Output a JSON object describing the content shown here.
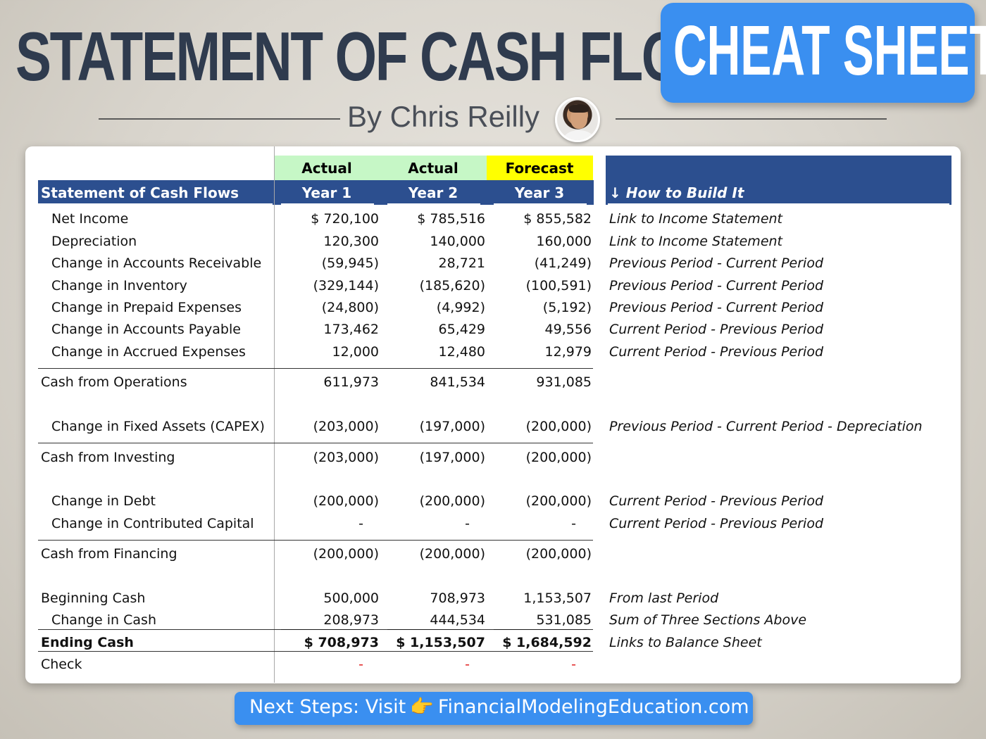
{
  "header": {
    "title": "STATEMENT OF CASH FLOWS",
    "badge": "CHEAT SHEET",
    "byline": "By Chris Reilly"
  },
  "colors": {
    "navy": "#2c4f8f",
    "accent_blue": "#3a8ff0",
    "actual_fill": "#c6f7c6",
    "forecast_fill": "#ffff00",
    "negative_check": "#e02020"
  },
  "table": {
    "top_headers": [
      "Actual",
      "Actual",
      "Forecast"
    ],
    "title": "Statement of Cash Flows",
    "years": [
      "Year 1",
      "Year 2",
      "Year 3"
    ],
    "how_header": "↓ How to Build It",
    "rows": [
      {
        "label": "Net Income",
        "values": [
          "$ 720,100",
          "$ 785,516",
          "$ 855,582"
        ],
        "note": "Link to Income Statement"
      },
      {
        "label": "Depreciation",
        "values": [
          "120,300",
          "140,000",
          "160,000"
        ],
        "note": "Link to Income Statement"
      },
      {
        "label": "Change in Accounts Receivable",
        "values": [
          "(59,945)",
          "28,721",
          "(41,249)"
        ],
        "note": "Previous Period - Current Period"
      },
      {
        "label": "Change in Inventory",
        "values": [
          "(329,144)",
          "(185,620)",
          "(100,591)"
        ],
        "note": "Previous Period - Current Period"
      },
      {
        "label": "Change in Prepaid Expenses",
        "values": [
          "(24,800)",
          "(4,992)",
          "(5,192)"
        ],
        "note": "Previous Period - Current Period"
      },
      {
        "label": "Change in Accounts Payable",
        "values": [
          "173,462",
          "65,429",
          "49,556"
        ],
        "note": "Current Period - Previous Period"
      },
      {
        "label": "Change in Accrued Expenses",
        "values": [
          "12,000",
          "12,480",
          "12,979"
        ],
        "note": "Current Period - Previous Period"
      },
      {
        "label": "Cash from Operations",
        "values": [
          "611,973",
          "841,534",
          "931,085"
        ],
        "note": ""
      },
      {
        "label": "Change in Fixed Assets (CAPEX)",
        "values": [
          "(203,000)",
          "(197,000)",
          "(200,000)"
        ],
        "note": "Previous Period - Current Period - Depreciation"
      },
      {
        "label": "Cash from Investing",
        "values": [
          "(203,000)",
          "(197,000)",
          "(200,000)"
        ],
        "note": ""
      },
      {
        "label": "Change in Debt",
        "values": [
          "(200,000)",
          "(200,000)",
          "(200,000)"
        ],
        "note": "Current Period - Previous Period"
      },
      {
        "label": "Change in Contributed Capital",
        "values": [
          "-",
          "-",
          "-"
        ],
        "note": "Current Period - Previous Period"
      },
      {
        "label": "Cash from Financing",
        "values": [
          "(200,000)",
          "(200,000)",
          "(200,000)"
        ],
        "note": ""
      },
      {
        "label": "Beginning Cash",
        "values": [
          "500,000",
          "708,973",
          "1,153,507"
        ],
        "note": "From last Period"
      },
      {
        "label": "Change in Cash",
        "values": [
          "208,973",
          "444,534",
          "531,085"
        ],
        "note": "Sum of Three Sections Above"
      },
      {
        "label": "Ending Cash",
        "values": [
          "$ 708,973",
          "$ 1,153,507",
          "$ 1,684,592"
        ],
        "note": "Links to Balance Sheet"
      },
      {
        "label": "Check",
        "values": [
          "-",
          "-",
          "-"
        ],
        "note": ""
      }
    ]
  },
  "cta": {
    "prefix": "Next Steps: Visit",
    "hand_icon": "pointing-hand-icon",
    "site": "FinancialModelingEducation.com"
  }
}
